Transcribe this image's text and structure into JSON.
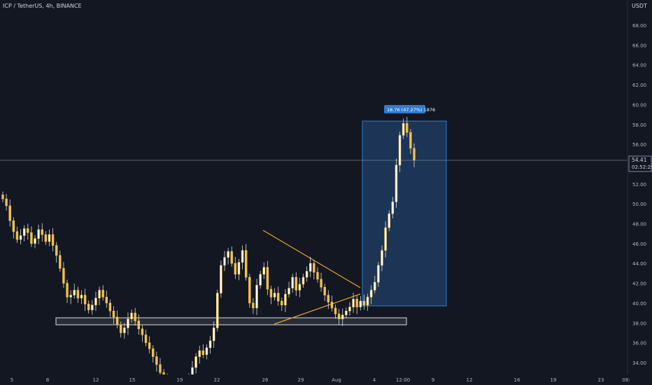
{
  "header": {
    "symbol": "ICP / TetherUS, 4h, BINANCE",
    "scale_unit": "USDT"
  },
  "colors": {
    "background": "#131722",
    "candle": "#f5c242",
    "wick": "#dddddd",
    "trendline": "#f0a020",
    "box_fill": "#1e3a5f",
    "box_border": "#2f7bd1",
    "label_bg": "#2f7bd1",
    "price_line": "#9fa7bd",
    "support_fill": "#505560"
  },
  "chart_data": {
    "type": "candlestick",
    "title": "ICP / TetherUS, 4h, BINANCE",
    "x_ticks": [
      "5",
      "8",
      "12",
      "15",
      "19",
      "22",
      "26",
      "29",
      "Aug",
      "4",
      "12:00",
      "9",
      "12",
      "16",
      "19",
      "23",
      "08:"
    ],
    "y_ticks": [
      "34.00",
      "36.00",
      "38.00",
      "40.00",
      "42.00",
      "44.00",
      "46.00",
      "48.00",
      "50.00",
      "52.00",
      "56.00",
      "58.00",
      "60.00",
      "62.00",
      "64.00",
      "66.00",
      "68.00"
    ],
    "ylim": [
      33.5,
      70.5
    ],
    "last_price": {
      "value": "54.41",
      "countdown": "02:52:25"
    },
    "measure": {
      "label": "18.76 (47.27%) 1876"
    },
    "approx_closes": [
      50.5,
      49.8,
      48.3,
      47.2,
      46.4,
      46.8,
      47.5,
      47.1,
      46.0,
      46.5,
      47.4,
      46.9,
      46.2,
      46.9,
      45.8,
      44.8,
      43.5,
      42.0,
      40.6,
      40.8,
      41.3,
      40.5,
      40.8,
      39.9,
      39.3,
      39.8,
      40.5,
      41.3,
      40.6,
      40.0,
      39.2,
      38.6,
      37.8,
      37.0,
      37.5,
      38.4,
      39.0,
      38.2,
      37.4,
      36.8,
      36.0,
      35.4,
      34.6,
      33.8,
      33.0,
      32.4,
      32.0,
      31.5,
      31.8,
      31.2,
      30.8,
      31.5,
      32.4,
      33.5,
      34.6,
      35.2,
      34.8,
      35.5,
      36.2,
      37.5,
      41.0,
      43.8,
      44.6,
      45.2,
      44.0,
      42.9,
      44.1,
      45.3,
      42.6,
      40.0,
      39.5,
      41.8,
      42.9,
      43.6,
      41.4,
      40.6,
      41.0,
      40.2,
      39.8,
      40.9,
      41.5,
      42.6,
      41.3,
      41.9,
      42.6,
      43.2,
      44.0,
      43.1,
      42.4,
      41.6,
      40.8,
      40.1,
      39.5,
      38.9,
      38.4,
      38.8,
      39.2,
      39.6,
      40.4,
      39.6,
      40.2,
      39.8,
      40.6,
      41.3,
      42.1,
      43.8,
      45.3,
      47.6,
      49.0,
      50.2,
      53.9,
      56.9,
      58.1,
      57.2,
      55.6,
      54.41
    ]
  }
}
